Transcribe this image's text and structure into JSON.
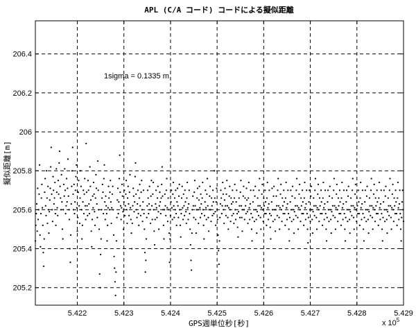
{
  "chart_data": {
    "type": "scatter",
    "title": "APL (C/A コード) コードによる擬似距離",
    "xlabel": "GPS週単位秒[秒]",
    "ylabel": "擬似距離[m]",
    "x_multiplier_label": "x 10",
    "x_multiplier_exponent": "5",
    "annotation": "1sigma = 0.1335 m",
    "xlim": [
      5.4211,
      5.429
    ],
    "ylim": [
      205.11,
      206.57
    ],
    "x_ticks": [
      5.422,
      5.423,
      5.424,
      5.425,
      5.426,
      5.427,
      5.428,
      5.429
    ],
    "x_tick_labels": [
      "5.422",
      "5.423",
      "5.424",
      "5.425",
      "5.426",
      "5.427",
      "5.428",
      "5.429"
    ],
    "y_ticks": [
      205.2,
      205.4,
      205.6,
      205.8,
      206.0,
      206.2,
      206.4
    ],
    "y_tick_labels": [
      "205.2",
      "205.4",
      "205.6",
      "205.8",
      "206",
      "206.2",
      "206.4"
    ],
    "grid": true,
    "series_color": "#000000",
    "x_start": 5.4211,
    "x_step": 1e-05,
    "y": [
      205.44,
      205.52,
      205.58,
      205.63,
      205.49,
      205.71,
      205.55,
      205.6,
      205.68,
      205.83,
      205.47,
      205.41,
      205.58,
      205.66,
      205.73,
      205.61,
      205.52,
      205.38,
      205.31,
      205.45,
      205.69,
      205.76,
      205.62,
      205.57,
      205.8,
      205.66,
      205.53,
      205.72,
      205.6,
      205.48,
      205.59,
      205.65,
      205.71,
      205.82,
      205.92,
      205.68,
      205.6,
      205.54,
      205.77,
      205.7,
      205.63,
      205.66,
      205.74,
      205.58,
      205.52,
      205.81,
      205.69,
      205.61,
      205.57,
      205.75,
      205.68,
      205.84,
      205.9,
      205.72,
      205.66,
      205.6,
      205.78,
      205.64,
      205.5,
      205.45,
      205.6,
      205.73,
      205.67,
      205.81,
      205.7,
      205.58,
      205.62,
      205.76,
      205.64,
      205.71,
      205.86,
      205.67,
      205.6,
      205.55,
      205.4,
      205.33,
      205.47,
      205.63,
      205.72,
      205.8,
      205.92,
      205.68,
      205.6,
      205.73,
      205.58,
      205.64,
      205.7,
      205.77,
      205.83,
      205.61,
      205.49,
      205.56,
      205.69,
      205.75,
      205.62,
      205.53,
      205.66,
      205.8,
      205.72,
      205.6,
      205.45,
      205.52,
      205.64,
      205.7,
      205.58,
      205.68,
      205.76,
      205.62,
      205.55,
      205.94,
      205.69,
      205.62,
      205.57,
      205.75,
      205.7,
      205.63,
      205.58,
      205.82,
      205.72,
      205.65,
      205.49,
      205.41,
      205.55,
      205.67,
      205.61,
      205.74,
      205.68,
      205.59,
      205.52,
      205.66,
      205.78,
      205.71,
      205.63,
      205.56,
      205.85,
      205.7,
      205.6,
      205.5,
      205.27,
      205.2,
      205.37,
      205.45,
      205.6,
      205.66,
      205.73,
      205.69,
      205.58,
      205.76,
      205.83,
      205.64,
      205.55,
      205.67,
      205.62,
      205.58,
      205.44,
      205.52,
      205.61,
      205.72,
      205.66,
      205.6,
      205.69,
      205.75,
      205.64,
      205.53,
      205.61,
      205.68,
      205.72,
      205.6,
      205.47,
      205.36,
      205.3,
      205.23,
      205.16,
      205.28,
      205.44,
      205.56,
      205.65,
      205.71,
      205.58,
      205.64,
      205.76,
      205.88,
      205.69,
      205.62,
      205.55,
      205.61,
      205.73,
      205.67,
      205.59,
      205.5,
      205.64,
      205.7,
      205.57,
      205.62,
      205.68,
      205.75,
      205.6,
      205.53,
      205.66,
      205.72,
      205.63,
      205.57,
      205.69,
      205.78,
      205.61,
      205.55,
      205.48,
      205.4,
      205.53,
      205.62,
      205.71,
      205.67,
      205.59,
      205.64,
      205.77,
      205.84,
      205.68,
      205.6,
      205.56,
      205.63,
      205.7,
      205.58,
      205.52,
      205.66,
      205.73,
      205.62,
      205.57,
      205.69,
      205.75,
      205.6,
      205.54,
      205.64,
      205.7,
      205.58,
      205.5,
      205.38,
      205.28,
      205.34,
      205.45,
      205.56,
      205.62,
      205.7,
      205.66,
      205.58,
      205.63,
      205.72,
      205.6,
      205.53,
      205.67,
      205.75,
      205.62,
      205.55,
      205.68,
      205.74,
      205.6,
      205.49,
      205.42,
      205.55,
      205.63,
      205.7,
      205.61,
      205.56,
      205.66,
      205.72,
      205.59,
      205.5,
      205.62,
      205.69,
      205.64,
      205.58,
      205.66,
      205.73,
      205.82,
      205.67,
      205.6,
      205.52,
      205.45,
      205.6,
      205.68,
      205.62,
      205.57,
      205.7,
      205.76,
      205.61,
      205.54,
      205.66,
      205.6,
      205.48,
      205.33,
      205.45,
      205.57,
      205.64,
      205.7,
      205.61,
      205.55,
      205.68,
      205.74,
      205.62,
      205.56,
      205.66,
      205.6,
      205.7,
      205.58,
      205.52,
      205.64,
      205.71,
      205.62,
      205.56,
      205.67,
      205.73,
      205.6,
      205.52,
      205.46,
      205.58,
      205.66,
      205.72,
      205.61,
      205.55,
      205.68,
      205.62,
      205.57,
      205.7,
      205.64,
      205.59,
      205.53,
      205.66,
      205.74,
      205.61,
      205.55,
      205.63,
      205.7,
      205.58,
      205.5,
      205.42,
      205.34,
      205.29,
      205.48,
      205.6,
      205.67,
      205.62,
      205.56,
      205.69,
      205.75,
      205.62,
      205.55,
      205.48,
      205.6,
      205.66,
      205.71,
      205.6,
      205.53,
      205.65,
      205.72,
      205.61,
      205.56,
      205.68,
      205.63,
      205.58,
      205.66,
      205.74,
      205.6,
      205.52,
      205.45,
      205.57,
      205.64,
      205.7,
      205.61,
      205.55,
      205.68,
      205.76,
      205.62,
      205.56,
      205.49,
      205.6,
      205.67,
      205.72,
      205.6,
      205.54,
      205.66,
      205.62,
      205.57,
      205.7,
      205.64,
      205.58,
      205.8,
      205.66,
      205.59,
      205.52,
      205.64,
      205.71,
      205.6,
      205.55,
      205.47,
      205.39,
      205.32,
      205.44,
      205.56,
      205.63,
      205.7,
      205.66,
      205.58,
      205.62,
      205.74,
      205.68,
      205.6,
      205.53,
      205.65,
      205.71,
      205.62,
      205.57,
      205.68,
      205.75,
      205.62,
      205.56,
      205.5,
      205.61,
      205.67,
      205.72,
      205.6,
      205.54,
      205.66,
      205.63,
      205.57,
      205.7,
      205.64,
      205.58,
      205.53,
      205.66,
      205.73,
      205.6,
      205.55,
      205.64,
      205.7,
      205.58,
      205.51,
      205.46,
      205.59,
      205.66,
      205.62,
      205.56,
      205.69,
      205.75,
      205.62,
      205.56,
      205.49,
      205.6,
      205.67,
      205.72,
      205.6,
      205.55,
      205.66,
      205.62,
      205.58,
      205.71,
      205.65,
      205.59,
      205.53,
      205.66,
      205.74,
      205.61,
      205.55,
      205.63,
      205.7,
      205.58,
      205.5,
      205.44,
      205.56,
      205.64,
      205.7,
      205.6,
      205.54,
      205.67,
      205.72,
      205.6,
      205.55,
      205.48,
      205.59,
      205.66,
      205.62,
      205.57,
      205.7,
      205.76,
      205.62,
      205.56,
      205.5,
      205.61,
      205.68,
      205.73,
      205.6,
      205.54,
      205.66,
      205.62,
      205.58,
      205.7,
      205.64,
      205.58,
      205.52,
      205.66,
      205.74,
      205.61,
      205.55,
      205.63,
      205.7,
      205.58,
      205.51,
      205.45,
      205.57,
      205.64,
      205.71,
      205.6,
      205.54,
      205.67,
      205.72,
      205.6,
      205.55,
      205.49,
      205.6,
      205.67,
      205.62,
      205.57,
      205.7,
      205.76,
      205.62,
      205.56,
      205.5,
      205.61,
      205.68,
      205.73,
      205.6,
      205.54,
      205.66,
      205.62,
      205.58,
      205.7,
      205.64,
      205.58,
      205.52,
      205.66,
      205.74,
      205.61,
      205.55,
      205.63,
      205.7,
      205.58,
      205.5,
      205.44,
      205.56,
      205.64,
      205.7,
      205.6,
      205.54,
      205.67,
      205.72,
      205.6,
      205.55,
      205.48,
      205.59,
      205.66,
      205.62,
      205.57,
      205.7,
      205.76,
      205.62,
      205.56,
      205.5,
      205.61,
      205.68,
      205.73,
      205.6,
      205.54,
      205.66,
      205.62,
      205.58,
      205.7,
      205.64,
      205.58,
      205.52,
      205.66,
      205.74,
      205.61,
      205.55,
      205.63,
      205.7,
      205.58,
      205.5,
      205.43,
      205.56,
      205.64,
      205.7,
      205.6,
      205.54,
      205.67,
      205.72,
      205.6,
      205.55,
      205.48,
      205.59,
      205.66,
      205.62,
      205.57,
      205.7,
      205.76,
      205.62,
      205.56,
      205.5,
      205.61,
      205.68,
      205.73,
      205.6,
      205.54,
      205.66,
      205.62,
      205.58,
      205.7,
      205.64,
      205.58,
      205.52,
      205.66,
      205.74,
      205.61,
      205.55,
      205.63,
      205.7,
      205.58,
      205.5,
      205.44,
      205.56,
      205.64,
      205.7,
      205.6,
      205.54,
      205.67,
      205.72,
      205.6,
      205.55,
      205.48,
      205.59,
      205.66,
      205.62,
      205.57,
      205.7,
      205.76,
      205.62,
      205.56,
      205.5,
      205.61,
      205.68,
      205.73,
      205.6,
      205.54,
      205.66,
      205.62,
      205.58,
      205.7,
      205.64,
      205.58,
      205.52,
      205.66,
      205.74,
      205.61,
      205.55,
      205.63,
      205.7,
      205.58,
      205.5,
      205.44,
      205.56,
      205.64,
      205.7,
      205.6,
      205.54,
      205.67,
      205.72,
      205.6,
      205.55,
      205.48,
      205.59,
      205.66,
      205.62,
      205.57,
      205.7,
      205.76,
      205.62,
      205.56,
      205.5,
      205.61,
      205.68,
      205.73,
      205.6,
      205.54,
      205.66,
      205.62,
      205.58,
      205.7,
      205.64,
      205.58,
      205.52,
      205.66,
      205.74,
      205.61,
      205.55,
      205.63,
      205.7,
      205.58,
      205.5,
      205.44,
      205.56,
      205.64,
      205.7,
      205.6,
      205.54,
      205.67,
      205.72,
      205.6,
      205.55,
      205.48,
      205.59,
      205.66,
      205.62,
      205.57,
      205.7,
      205.76,
      205.62,
      205.56,
      205.5,
      205.61,
      205.68,
      205.73,
      205.6,
      205.54,
      205.66,
      205.62,
      205.58,
      205.7,
      205.64,
      205.58,
      205.52,
      205.66,
      205.74,
      205.61,
      205.55,
      205.63,
      205.7,
      205.58,
      205.5,
      205.44,
      205.56,
      205.64,
      205.7,
      205.6,
      205.54,
      205.67,
      205.72,
      205.6,
      205.55,
      205.48,
      205.59,
      205.66,
      205.62,
      205.57,
      205.7,
      205.76,
      205.62,
      205.56,
      205.5,
      205.61,
      205.68,
      205.73,
      205.6,
      205.54,
      205.66,
      205.62,
      205.58,
      205.7,
      205.64,
      205.58,
      205.52,
      205.66,
      205.74,
      205.61,
      205.55,
      205.63,
      205.7,
      205.58,
      205.5,
      205.44,
      205.56,
      205.64,
      205.7,
      205.6,
      205.54,
      205.67,
      205.72,
      205.6,
      205.55,
      205.48,
      205.59,
      205.66,
      205.62,
      205.57,
      205.7,
      205.76,
      205.62,
      205.56,
      205.5,
      205.61,
      205.68,
      205.73,
      205.6,
      205.54,
      205.66,
      205.62,
      205.58,
      205.7,
      205.64,
      205.58,
      205.52,
      205.66,
      205.74,
      205.61,
      205.55,
      205.63,
      205.7,
      205.58,
      205.5,
      205.44,
      205.56,
      205.64,
      205.7,
      205.6,
      205.54,
      205.67,
      205.72,
      205.6,
      205.55,
      205.48,
      205.59,
      205.66,
      205.62,
      205.57,
      205.7,
      205.76,
      205.62,
      205.56,
      205.5,
      205.61,
      205.68,
      205.73,
      205.6,
      205.54,
      205.66,
      205.62,
      205.58,
      205.7,
      205.64,
      205.58,
      205.52,
      205.66,
      205.74,
      205.61,
      205.55,
      205.63,
      205.7,
      205.58,
      205.5,
      205.44,
      205.56,
      205.64,
      205.7,
      205.6,
      205.54,
      205.67,
      205.72,
      205.6,
      205.55,
      205.48,
      205.59,
      205.66,
      205.62,
      205.57,
      205.7,
      205.76,
      205.62,
      205.56,
      205.5,
      205.61,
      205.68,
      205.73,
      205.6,
      205.54,
      205.66,
      205.62,
      205.58,
      205.7,
      205.64,
      205.58,
      205.52,
      205.66,
      205.74,
      205.61,
      205.55,
      205.63,
      205.7,
      205.58,
      205.5,
      205.44,
      205.56,
      205.64,
      205.7,
      205.6,
      205.54,
      205.67,
      205.72
    ]
  }
}
